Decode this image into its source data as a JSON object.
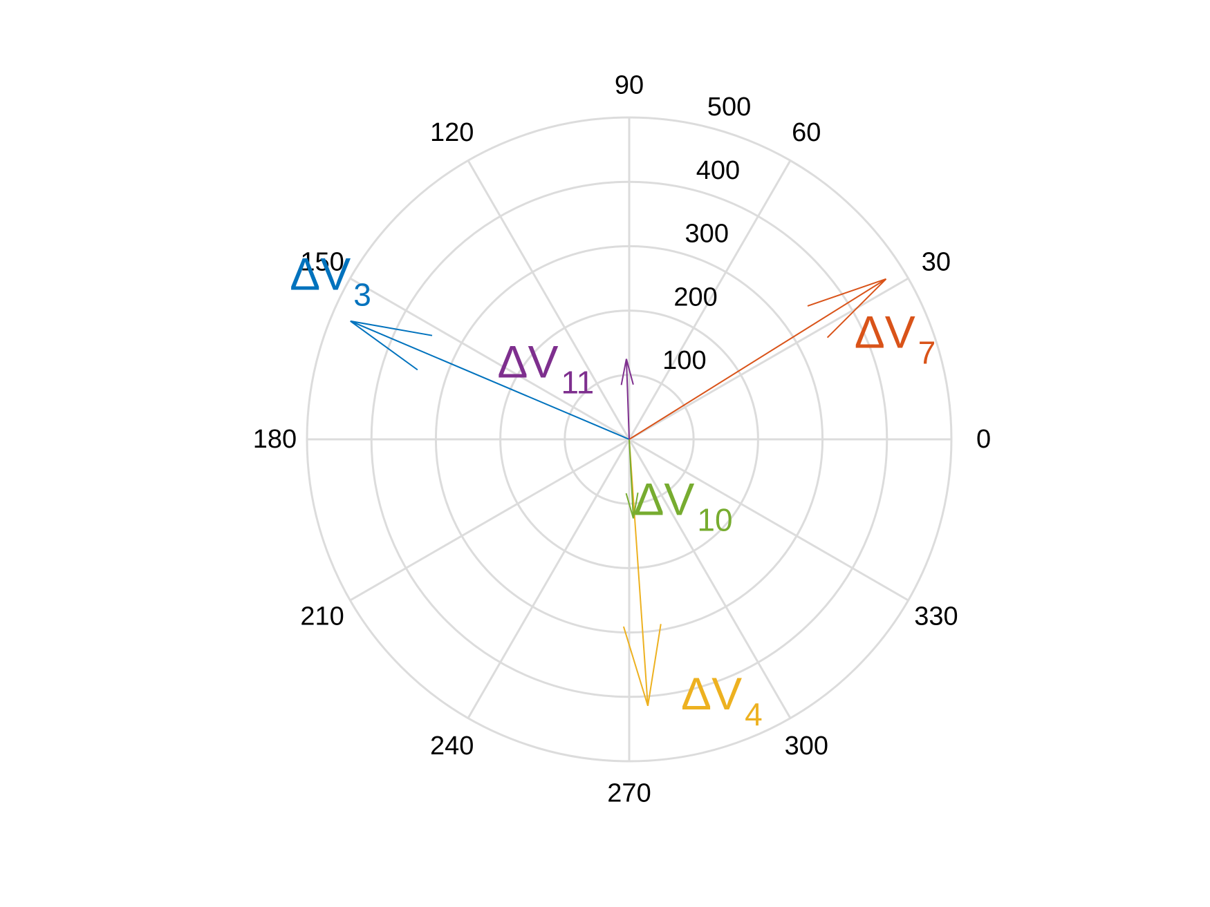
{
  "chart_data": {
    "type": "polar-compass",
    "angle_unit": "degrees",
    "angle_ticks": [
      0,
      30,
      60,
      90,
      120,
      150,
      180,
      210,
      240,
      270,
      300,
      330
    ],
    "angle_tick_labels": [
      "0",
      "30",
      "60",
      "90",
      "120",
      "150",
      "180",
      "210",
      "240",
      "270",
      "300",
      "330"
    ],
    "radial_ticks": [
      100,
      200,
      300,
      400,
      500
    ],
    "radial_tick_labels": [
      "100",
      "200",
      "300",
      "400",
      "500"
    ],
    "rlim": [
      0,
      500
    ],
    "grid": true,
    "legend": "none",
    "grid_color": "#dcdcdc",
    "series": [
      {
        "name": "ΔV3",
        "label_main": "ΔV",
        "label_sub": "3",
        "angle": 157,
        "magnitude": 470,
        "color": "#0072bd",
        "label_angle": 151,
        "label_radius": 530
      },
      {
        "name": "ΔV7",
        "label_main": "ΔV",
        "label_sub": "7",
        "angle": 32,
        "magnitude": 470,
        "color": "#d95319",
        "label_angle": 22,
        "label_radius": 445
      },
      {
        "name": "ΔV4",
        "label_main": "ΔV",
        "label_sub": "4",
        "angle": 274,
        "magnitude": 415,
        "color": "#edb120",
        "label_angle": 290,
        "label_radius": 420
      },
      {
        "name": "ΔV10",
        "label_main": "ΔV",
        "label_sub": "10",
        "angle": 273,
        "magnitude": 123,
        "color": "#77ac30",
        "label_angle": 312,
        "label_radius": 125
      },
      {
        "name": "ΔV11",
        "label_main": "ΔV",
        "label_sub": "11",
        "angle": 92,
        "magnitude": 125,
        "color": "#7e2f8e",
        "label_angle": 137,
        "label_radius": 177
      }
    ]
  }
}
